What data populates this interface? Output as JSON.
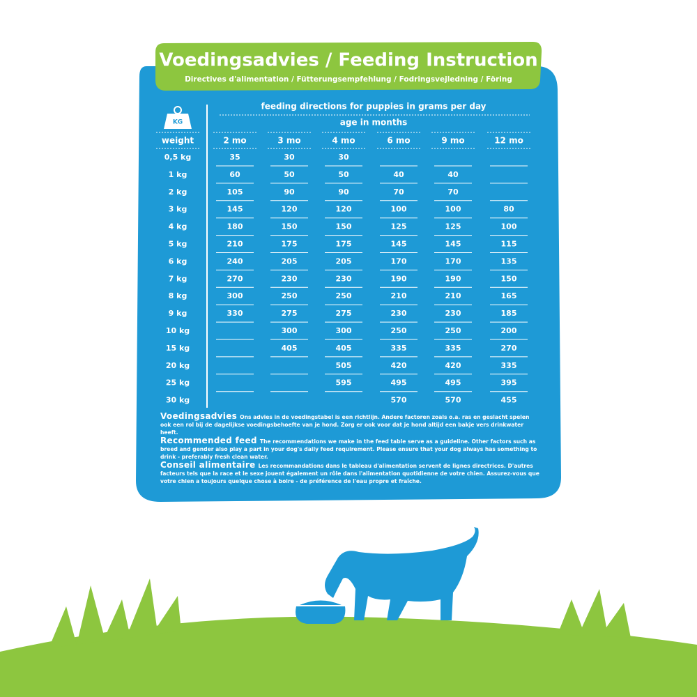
{
  "header": {
    "title": "Voedingsadvies / Feeding Instruction",
    "subtitle": "Directives d'alimentation / Fütterungsempfehlung / Fodringsvejledning / Föring"
  },
  "icon_label": "KG",
  "table": {
    "caption": "feeding directions for puppies in grams per day",
    "age_caption": "age in months",
    "columns": [
      "weight",
      "2 mo",
      "3 mo",
      "4 mo",
      "6 mo",
      "9 mo",
      "12 mo"
    ],
    "rows": [
      [
        "0,5 kg",
        35,
        30,
        30,
        null,
        null,
        null
      ],
      [
        "1 kg",
        60,
        50,
        50,
        40,
        40,
        null
      ],
      [
        "2 kg",
        105,
        90,
        90,
        70,
        70,
        null
      ],
      [
        "3 kg",
        145,
        120,
        120,
        100,
        100,
        80
      ],
      [
        "4 kg",
        180,
        150,
        150,
        125,
        125,
        100
      ],
      [
        "5 kg",
        210,
        175,
        175,
        145,
        145,
        115
      ],
      [
        "6 kg",
        240,
        205,
        205,
        170,
        170,
        135
      ],
      [
        "7 kg",
        270,
        230,
        230,
        190,
        190,
        150
      ],
      [
        "8 kg",
        300,
        250,
        250,
        210,
        210,
        165
      ],
      [
        "9 kg",
        330,
        275,
        275,
        230,
        230,
        185
      ],
      [
        "10 kg",
        null,
        300,
        300,
        250,
        250,
        200
      ],
      [
        "15 kg",
        null,
        405,
        405,
        335,
        335,
        270
      ],
      [
        "20 kg",
        null,
        null,
        505,
        420,
        420,
        335
      ],
      [
        "25 kg",
        null,
        null,
        595,
        495,
        495,
        395
      ],
      [
        "30 kg",
        null,
        null,
        null,
        570,
        570,
        455
      ]
    ]
  },
  "notes": [
    {
      "heading": "Voedingsadvies",
      "text": "Ons advies in de voedingstabel is een richtlijn. Andere factoren zoals o.a. ras en geslacht spelen ook een rol bij de dagelijkse voedingsbehoefte van je hond. Zorg er ook voor dat je hond altijd een bakje vers drinkwater heeft."
    },
    {
      "heading": "Recommended feed",
      "text": "The recommendations we make in the feed table serve as a guideline. Other factors such as breed and gender also play a part in your dog's daily feed requirement. Please ensure that your dog always has something to drink - preferably fresh clean water."
    },
    {
      "heading": "Conseil alimentaire",
      "text": "Les recommandations dans le tableau d'alimentation servent de lignes directrices. D'autres facteurs tels que la race et le sexe jouent également un rôle dans l'alimentation quotidienne de votre chien. Assurez-vous que votre chien a toujours quelque chose à boire - de préférence de l'eau propre et fraîche."
    }
  ]
}
